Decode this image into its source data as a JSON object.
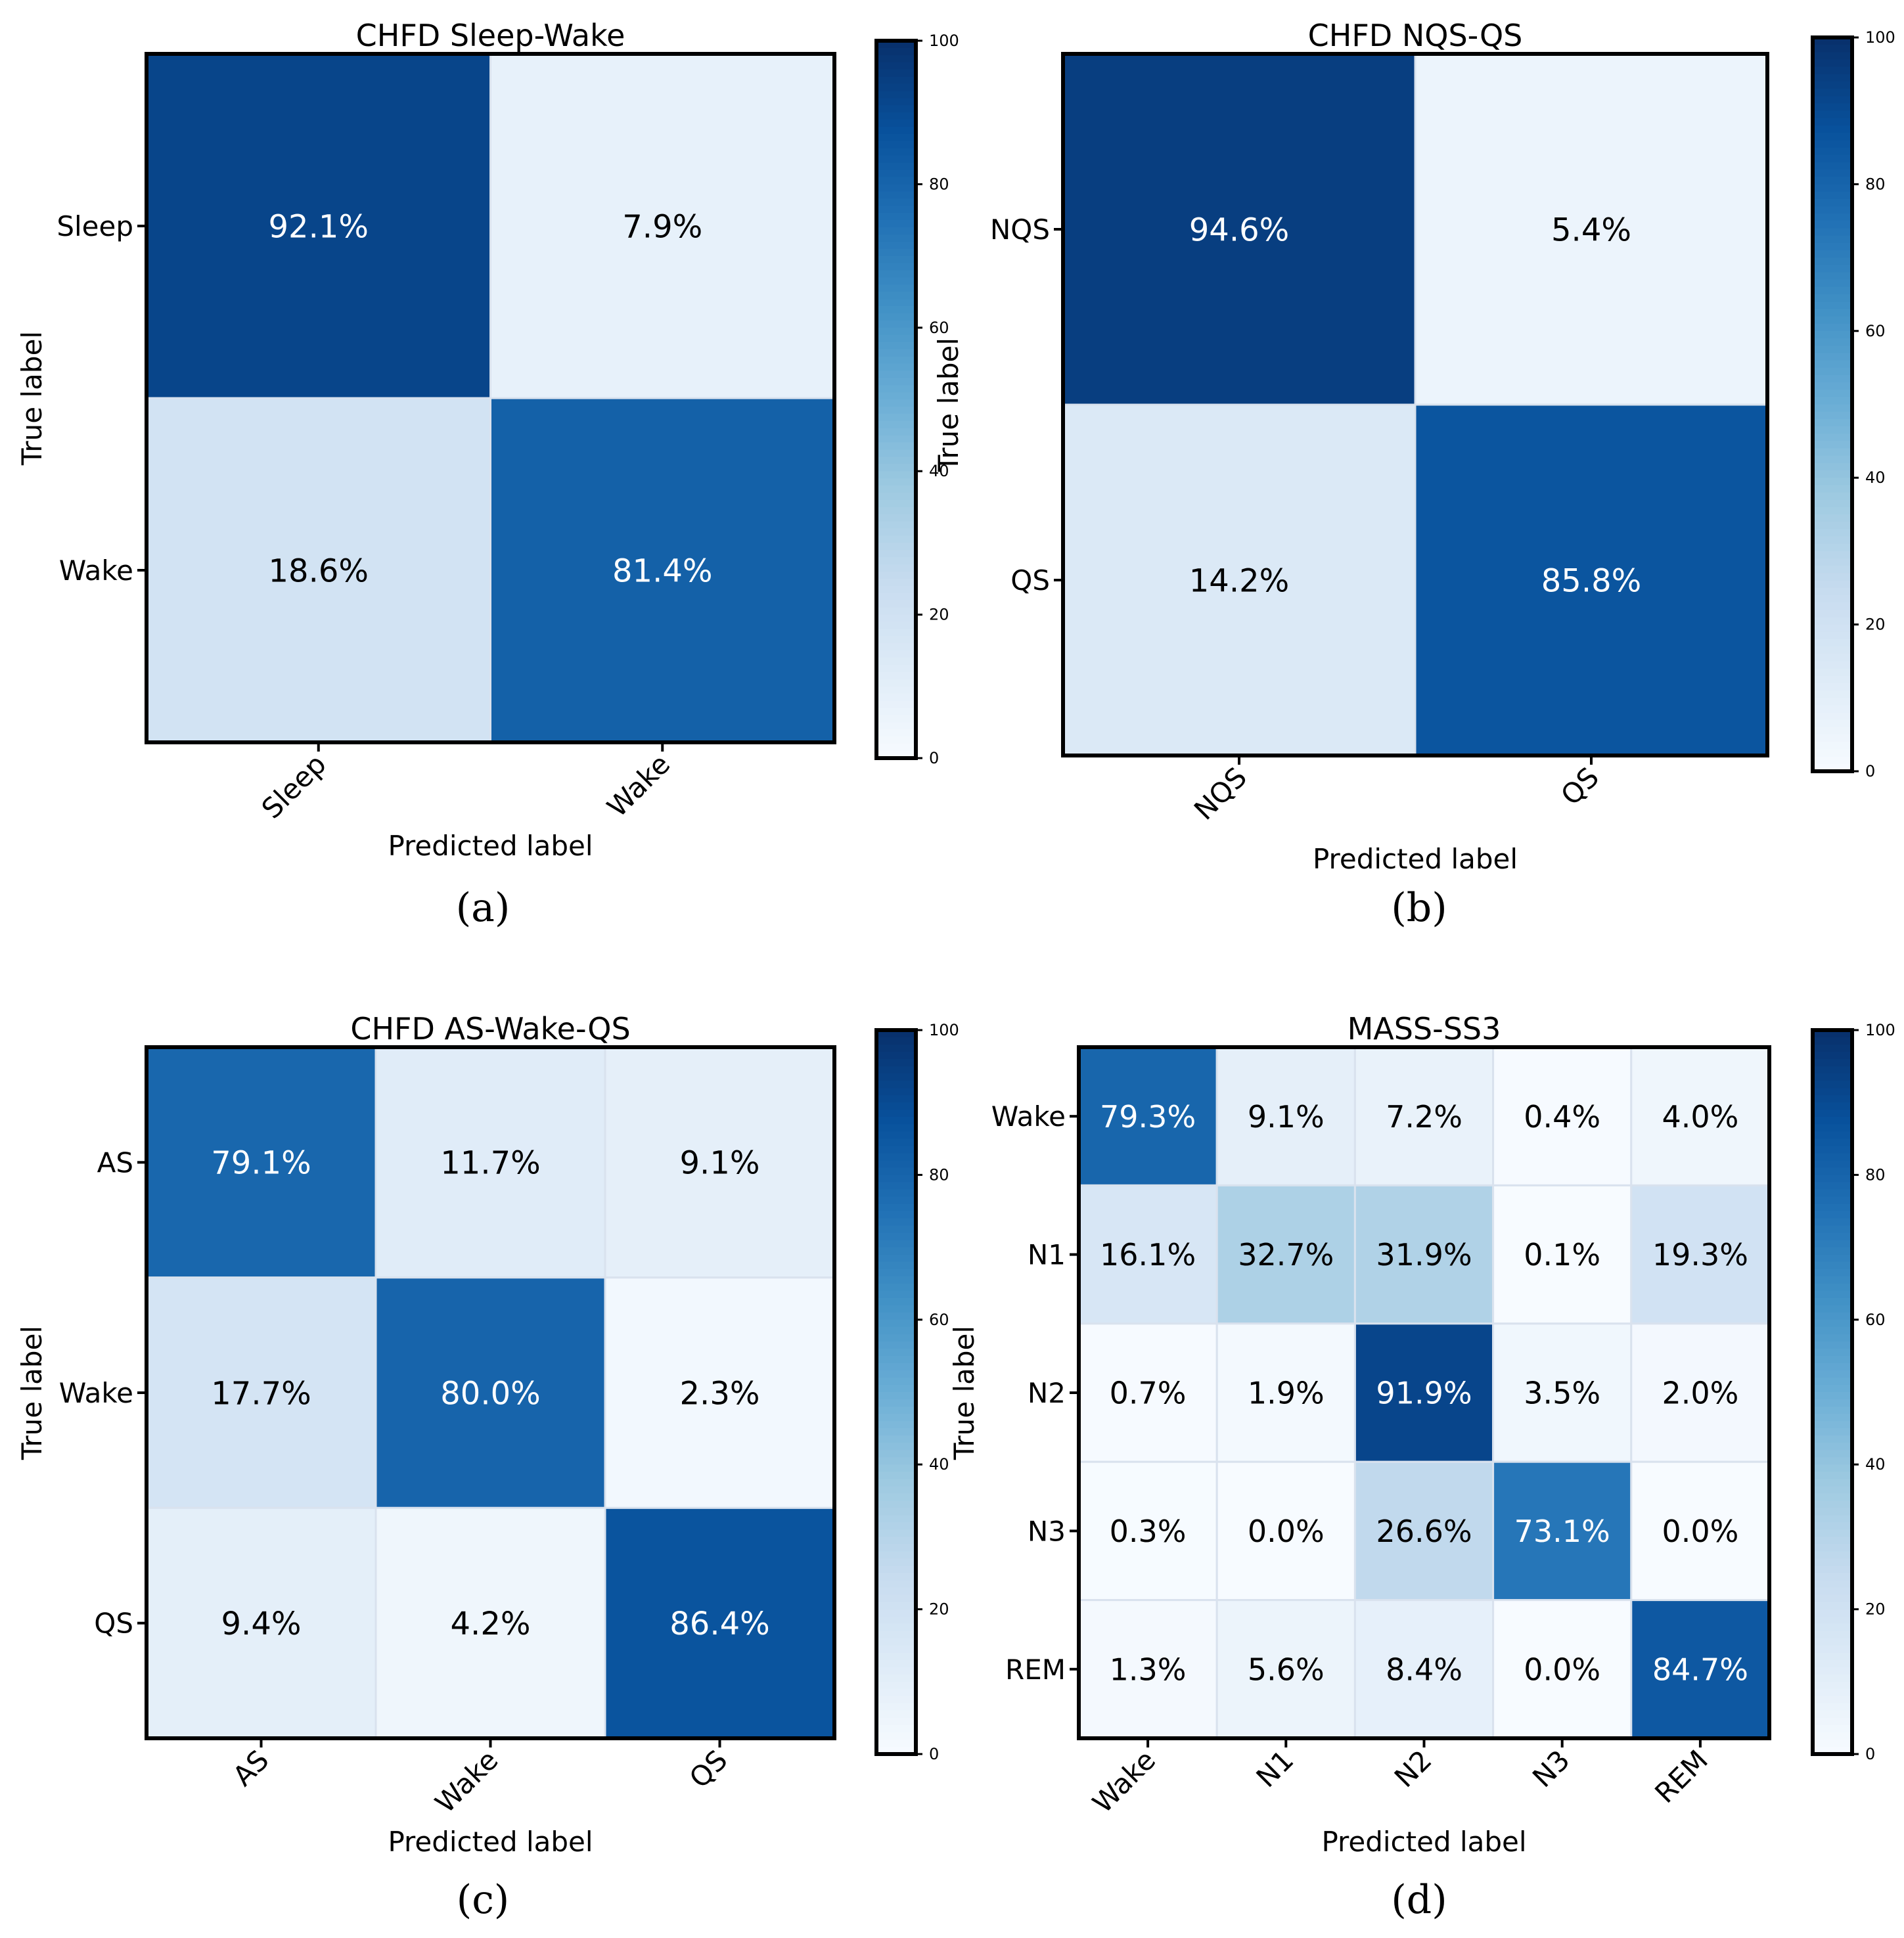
{
  "chart_data": [
    {
      "type": "heatmap",
      "title": "CHFD Sleep-Wake",
      "xlabel": "Predicted label",
      "ylabel": "True label",
      "caption": "(a)",
      "row_labels": [
        "Sleep",
        "Wake"
      ],
      "col_labels": [
        "Sleep",
        "Wake"
      ],
      "values": [
        [
          92.1,
          7.9
        ],
        [
          18.6,
          81.4
        ]
      ],
      "cell_labels": [
        [
          "92.1%",
          "7.9%"
        ],
        [
          "18.6%",
          "81.4%"
        ]
      ],
      "colorbar": {
        "min": 0,
        "max": 100,
        "ticks": [
          "0",
          "20",
          "40",
          "60",
          "80",
          "100"
        ]
      }
    },
    {
      "type": "heatmap",
      "title": "CHFD NQS-QS",
      "xlabel": "Predicted label",
      "ylabel": "True label",
      "caption": "(b)",
      "row_labels": [
        "NQS",
        "QS"
      ],
      "col_labels": [
        "NQS",
        "QS"
      ],
      "values": [
        [
          94.6,
          5.4
        ],
        [
          14.2,
          85.8
        ]
      ],
      "cell_labels": [
        [
          "94.6%",
          "5.4%"
        ],
        [
          "14.2%",
          "85.8%"
        ]
      ],
      "colorbar": {
        "min": 0,
        "max": 100,
        "ticks": [
          "0",
          "20",
          "40",
          "60",
          "80",
          "100"
        ]
      }
    },
    {
      "type": "heatmap",
      "title": "CHFD AS-Wake-QS",
      "xlabel": "Predicted label",
      "ylabel": "True label",
      "caption": "(c)",
      "row_labels": [
        "AS",
        "Wake",
        "QS"
      ],
      "col_labels": [
        "AS",
        "Wake",
        "QS"
      ],
      "values": [
        [
          79.1,
          11.7,
          9.1
        ],
        [
          17.7,
          80.0,
          2.3
        ],
        [
          9.4,
          4.2,
          86.4
        ]
      ],
      "cell_labels": [
        [
          "79.1%",
          "11.7%",
          "9.1%"
        ],
        [
          "17.7%",
          "80.0%",
          "2.3%"
        ],
        [
          "9.4%",
          "4.2%",
          "86.4%"
        ]
      ],
      "colorbar": {
        "min": 0,
        "max": 100,
        "ticks": [
          "0",
          "20",
          "40",
          "60",
          "80",
          "100"
        ]
      }
    },
    {
      "type": "heatmap",
      "title": "MASS-SS3",
      "xlabel": "Predicted label",
      "ylabel": "True label",
      "caption": "(d)",
      "row_labels": [
        "Wake",
        "N1",
        "N2",
        "N3",
        "REM"
      ],
      "col_labels": [
        "Wake",
        "N1",
        "N2",
        "N3",
        "REM"
      ],
      "values": [
        [
          79.3,
          9.1,
          7.2,
          0.4,
          4.0
        ],
        [
          16.1,
          32.7,
          31.9,
          0.1,
          19.3
        ],
        [
          0.7,
          1.9,
          91.9,
          3.5,
          2.0
        ],
        [
          0.3,
          0.0,
          26.6,
          73.1,
          0.0
        ],
        [
          1.3,
          5.6,
          8.4,
          0.0,
          84.7
        ]
      ],
      "cell_labels": [
        [
          "79.3%",
          "9.1%",
          "7.2%",
          "0.4%",
          "4.0%"
        ],
        [
          "16.1%",
          "32.7%",
          "31.9%",
          "0.1%",
          "19.3%"
        ],
        [
          "0.7%",
          "1.9%",
          "91.9%",
          "3.5%",
          "2.0%"
        ],
        [
          "0.3%",
          "0.0%",
          "26.6%",
          "73.1%",
          "0.0%"
        ],
        [
          "1.3%",
          "5.6%",
          "8.4%",
          "0.0%",
          "84.7%"
        ]
      ],
      "colorbar": {
        "min": 0,
        "max": 100,
        "ticks": [
          "0",
          "20",
          "40",
          "60",
          "80",
          "100"
        ]
      }
    }
  ],
  "colors": {
    "scale": [
      "#f7fbff",
      "#deebf7",
      "#c6dbef",
      "#9ecae1",
      "#6baed6",
      "#4292c6",
      "#2171b5",
      "#08519c",
      "#08306b"
    ],
    "text_dark": "#000000",
    "text_light": "#ffffff",
    "frame": "#000000"
  }
}
